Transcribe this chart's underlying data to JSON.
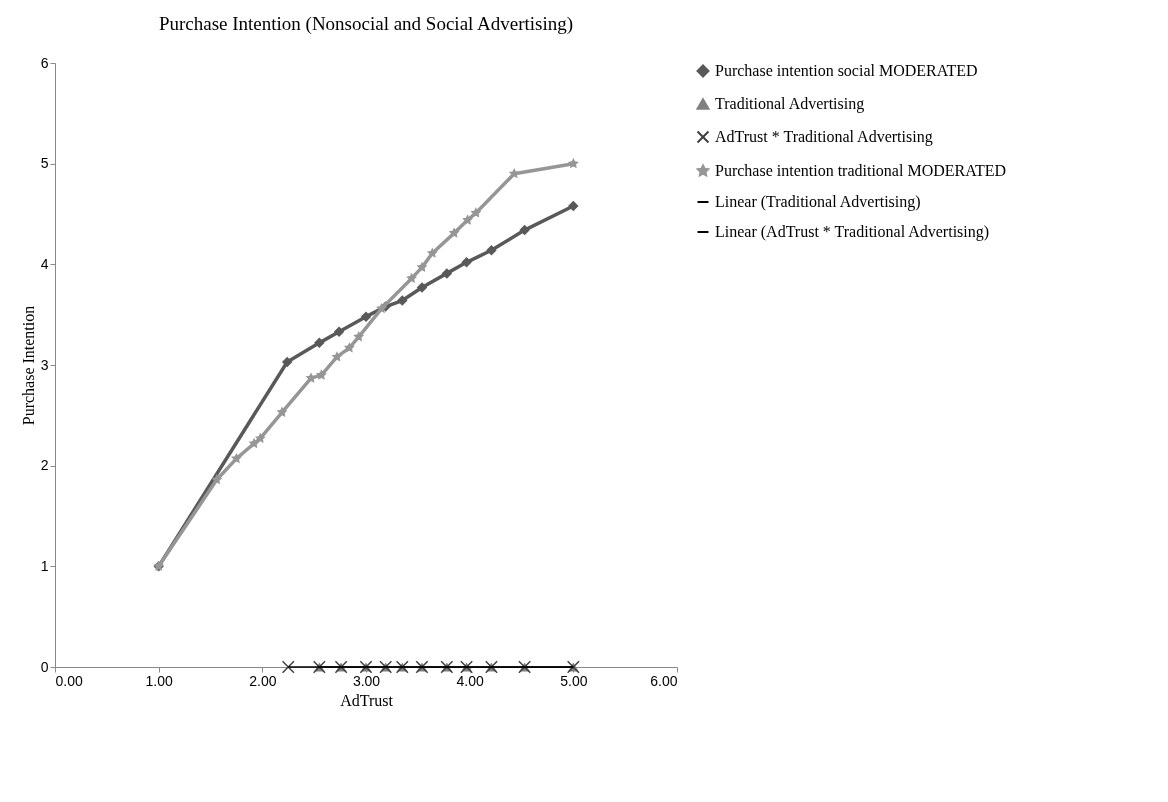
{
  "chart_data": {
    "type": "line",
    "title": "Purchase Intention (Nonsocial and Social Advertising)",
    "xlabel": "AdTrust",
    "ylabel": "Purchase Intention",
    "xlim": [
      0,
      6
    ],
    "xticks": [
      {
        "value": 0,
        "label": "0.00"
      },
      {
        "value": 1,
        "label": "1.00"
      },
      {
        "value": 2,
        "label": "2.00"
      },
      {
        "value": 3,
        "label": "3.00"
      },
      {
        "value": 4,
        "label": "4.00"
      },
      {
        "value": 5,
        "label": "5.00"
      },
      {
        "value": 6,
        "label": "6.00"
      }
    ],
    "ylim": [
      0,
      6
    ],
    "yticks": [
      0,
      1,
      2,
      3,
      4,
      5,
      6
    ],
    "grid": false,
    "legend": "right",
    "series": [
      {
        "name": "Purchase intention social MODERATED",
        "marker": "diamond",
        "color": "#595959",
        "x": [
          1,
          2.24,
          2.55,
          2.74,
          3.0,
          3.19,
          3.35,
          3.54,
          3.78,
          3.97,
          4.21,
          4.53,
          5
        ],
        "values": [
          1,
          3.03,
          3.22,
          3.33,
          3.48,
          3.58,
          3.64,
          3.77,
          3.91,
          4.02,
          4.14,
          4.34,
          4.58
        ]
      },
      {
        "name": "Traditional Advertising",
        "type": "scatter",
        "marker": "triangle",
        "color": "#808080",
        "x": [
          2.55,
          2.76,
          3.0,
          3.19,
          3.35,
          3.54,
          3.78,
          3.97,
          4.21,
          4.53,
          5
        ],
        "values": [
          0,
          0,
          0,
          0,
          0,
          0,
          0,
          0,
          0,
          0,
          0
        ]
      },
      {
        "name": "AdTrust * Traditional Advertising",
        "type": "scatter",
        "marker": "cross",
        "color": "#404040",
        "x": [
          2.25,
          2.55,
          2.76,
          3.0,
          3.19,
          3.35,
          3.54,
          3.78,
          3.97,
          4.21,
          4.53,
          5
        ],
        "values": [
          0,
          0,
          0,
          0,
          0,
          0,
          0,
          0,
          0,
          0,
          0,
          0
        ]
      },
      {
        "name": "Purchase intention traditional MODERATED",
        "marker": "star",
        "color": "#969696",
        "x": [
          1,
          1.56,
          1.75,
          1.92,
          1.98,
          2.19,
          2.47,
          2.57,
          2.72,
          2.84,
          2.93,
          3.15,
          3.44,
          3.54,
          3.64,
          3.85,
          3.98,
          4.06,
          4.43,
          5
        ],
        "values": [
          1,
          1.86,
          2.07,
          2.22,
          2.27,
          2.53,
          2.87,
          2.9,
          3.08,
          3.17,
          3.28,
          3.56,
          3.86,
          3.97,
          4.11,
          4.31,
          4.44,
          4.51,
          4.9,
          5
        ]
      },
      {
        "name": "Linear (Traditional Advertising)",
        "marker": "none",
        "color": "#000000",
        "x": [
          2.55,
          5
        ],
        "values": [
          0,
          0
        ]
      },
      {
        "name": "Linear (AdTrust * Traditional Advertising)",
        "marker": "none",
        "color": "#000000",
        "x": [
          2.25,
          5
        ],
        "values": [
          0,
          0
        ]
      }
    ]
  }
}
